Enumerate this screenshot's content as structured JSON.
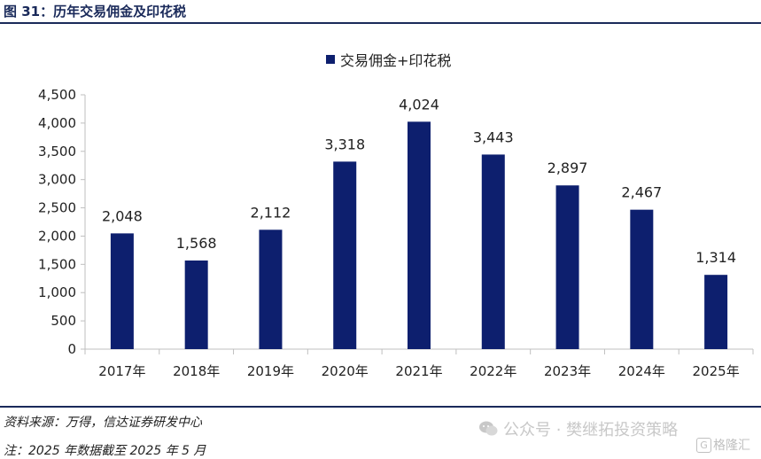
{
  "header": {
    "title": "图 31：历年交易佣金及印花税"
  },
  "footer": {
    "source": "资料来源：万得，信达证券研发中心",
    "note": "注：2025 年数据截至 2025 年 5 月",
    "watermark": "公众号 · 樊继拓投资策略",
    "watermark_badge_letter": "G",
    "watermark_badge": "格隆汇"
  },
  "colors": {
    "bar": "#0d1f6e",
    "axis": "#bfbfbf",
    "title_rule": "#1a2a5a"
  },
  "chart_data": {
    "type": "bar",
    "title": "",
    "xlabel": "",
    "ylabel": "",
    "categories": [
      "2017年",
      "2018年",
      "2019年",
      "2020年",
      "2021年",
      "2022年",
      "2023年",
      "2024年",
      "2025年"
    ],
    "series": [
      {
        "name": "交易佣金+印花税",
        "values": [
          2048,
          1568,
          2112,
          3318,
          4024,
          3443,
          2897,
          2467,
          1314
        ]
      }
    ],
    "data_labels": [
      "2,048",
      "1,568",
      "2,112",
      "3,318",
      "4,024",
      "3,443",
      "2,897",
      "2,467",
      "1,314"
    ],
    "ylim": [
      0,
      4500
    ],
    "yticks": [
      0,
      500,
      1000,
      1500,
      2000,
      2500,
      3000,
      3500,
      4000,
      4500
    ],
    "ytick_labels": [
      "0",
      "500",
      "1,000",
      "1,500",
      "2,000",
      "2,500",
      "3,000",
      "3,500",
      "4,000",
      "4,500"
    ],
    "grid": false,
    "legend_position": "top-center"
  }
}
